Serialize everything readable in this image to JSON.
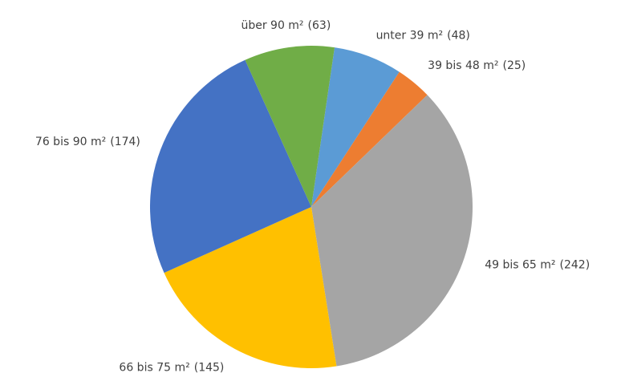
{
  "chart_data": {
    "type": "pie",
    "categories": [
      "unter 39 m²",
      "39 bis 48 m²",
      "49 bis 65 m²",
      "66 bis 75 m²",
      "76 bis 90 m²",
      "über 90 m²"
    ],
    "values": [
      48,
      25,
      242,
      145,
      174,
      63
    ],
    "value_labels": [
      "(48)",
      "(25)",
      "(242)",
      "(145)",
      "(174)",
      "(63)"
    ],
    "colors": [
      "#5b9bd5",
      "#ed7d31",
      "#a5a5a5",
      "#ffc000",
      "#4472c4",
      "#70ad47"
    ]
  }
}
